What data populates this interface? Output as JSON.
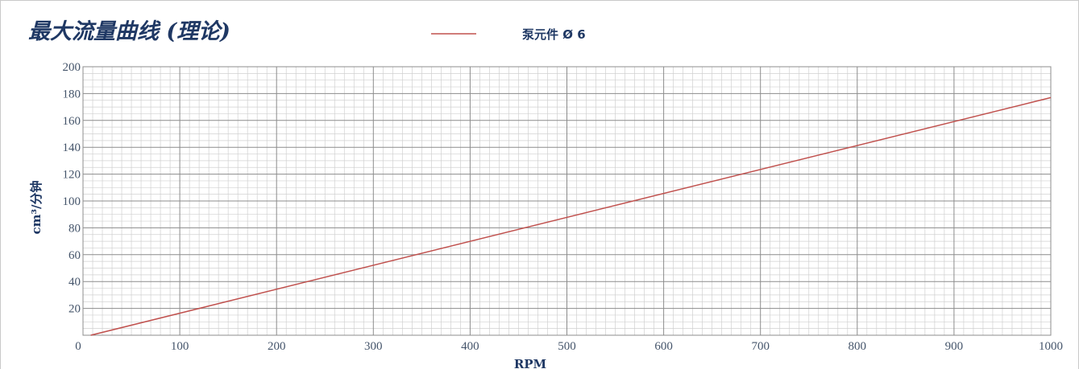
{
  "chart_data": {
    "type": "line",
    "title": "最大流量曲线 (理论)",
    "xlabel": "RPM",
    "ylabel": "cm³/分钟",
    "xlim": [
      0,
      1000
    ],
    "ylim": [
      0,
      200
    ],
    "x_ticks": [
      0,
      100,
      200,
      300,
      400,
      500,
      600,
      700,
      800,
      900,
      1000
    ],
    "y_ticks": [
      20,
      40,
      60,
      80,
      100,
      120,
      140,
      160,
      180,
      200
    ],
    "grid": true,
    "legend_position": "top-center",
    "series": [
      {
        "name": "泵元件 Ø 6",
        "color": "#c0504d",
        "x": [
          8,
          1000
        ],
        "y": [
          0,
          177
        ]
      }
    ]
  },
  "colors": {
    "major_grid": "#8c8c8c",
    "minor_grid": "#d0d0d0",
    "title": "#1f3864",
    "tick": "#44546a"
  }
}
